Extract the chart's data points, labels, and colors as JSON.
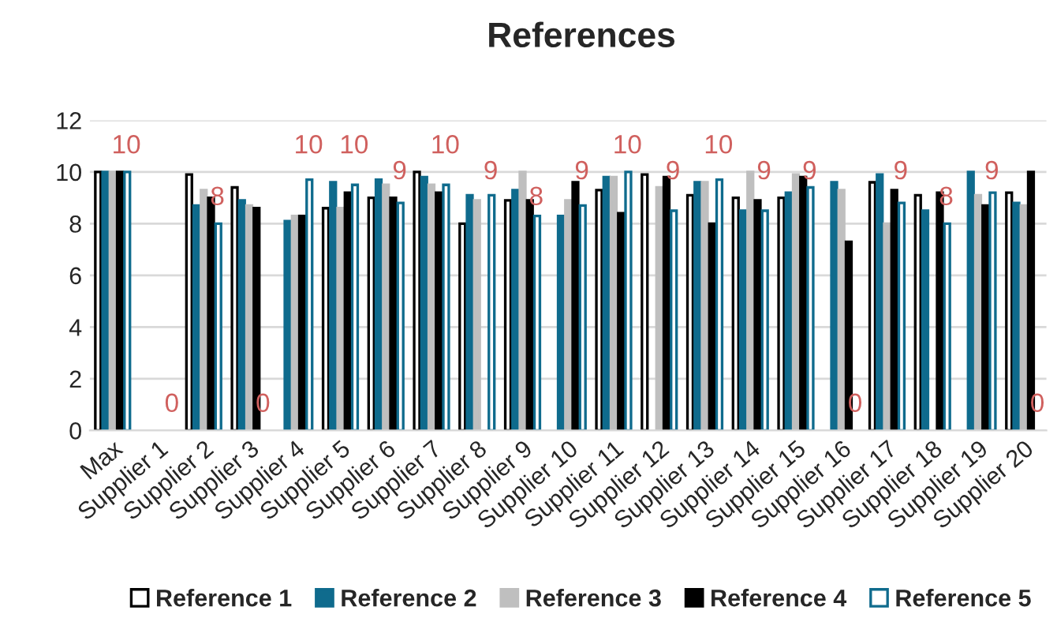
{
  "chart_data": {
    "type": "bar",
    "title": "References",
    "categories": [
      "Max",
      "Supplier 1",
      "Supplier 2",
      "Supplier 3",
      "Supplier 4",
      "Supplier 5",
      "Supplier 6",
      "Supplier 7",
      "Supplier 8",
      "Supplier 9",
      "Supplier 10",
      "Supplier 11",
      "Supplier 12",
      "Supplier 13",
      "Supplier 14",
      "Supplier 15",
      "Supplier 16",
      "Supplier 17",
      "Supplier 18",
      "Supplier 19",
      "Supplier 20"
    ],
    "series": [
      {
        "name": "Reference 1",
        "color": "#ffffff",
        "values": [
          10,
          null,
          9.9,
          9.4,
          null,
          8.6,
          9.0,
          10,
          8.0,
          8.9,
          null,
          9.3,
          9.9,
          9.1,
          9.0,
          9.0,
          null,
          9.6,
          9.1,
          null,
          9.2
        ]
      },
      {
        "name": "Reference 2",
        "color": "#0f6b8d",
        "values": [
          10,
          null,
          8.7,
          8.9,
          8.1,
          9.6,
          9.7,
          9.8,
          9.1,
          9.3,
          8.3,
          9.8,
          null,
          9.6,
          8.5,
          9.2,
          9.6,
          9.9,
          8.5,
          10,
          8.8
        ]
      },
      {
        "name": "Reference 3",
        "color": "#bfbfbf",
        "values": [
          10,
          null,
          9.3,
          8.7,
          8.3,
          8.6,
          9.5,
          9.5,
          8.9,
          10,
          8.9,
          9.8,
          9.4,
          9.6,
          10,
          9.9,
          9.3,
          8.0,
          null,
          9.1,
          8.7
        ]
      },
      {
        "name": "Reference 4",
        "color": "#000000",
        "values": [
          10,
          null,
          9.0,
          8.6,
          8.3,
          9.2,
          9.0,
          9.2,
          null,
          8.9,
          9.6,
          8.4,
          9.8,
          8.0,
          8.9,
          9.8,
          7.3,
          9.3,
          9.2,
          8.7,
          10
        ]
      },
      {
        "name": "Reference 5",
        "color": "#ffffff",
        "values": [
          10,
          null,
          8.0,
          null,
          9.7,
          9.5,
          8.8,
          9.5,
          9.1,
          8.3,
          8.7,
          10,
          8.5,
          9.7,
          8.5,
          9.4,
          null,
          8.8,
          8.0,
          9.2,
          null
        ]
      }
    ],
    "annotations": [
      "10",
      "0",
      "8",
      "0",
      "10",
      "10",
      "9",
      "10",
      "9",
      "8",
      "9",
      "10",
      "9",
      "10",
      "9",
      "9",
      "0",
      "9",
      "8",
      "9",
      "0"
    ],
    "ylim": [
      0,
      12
    ],
    "yticks": [
      0,
      2,
      4,
      6,
      8,
      10,
      12
    ],
    "grid": "y",
    "legend": "bottom"
  }
}
